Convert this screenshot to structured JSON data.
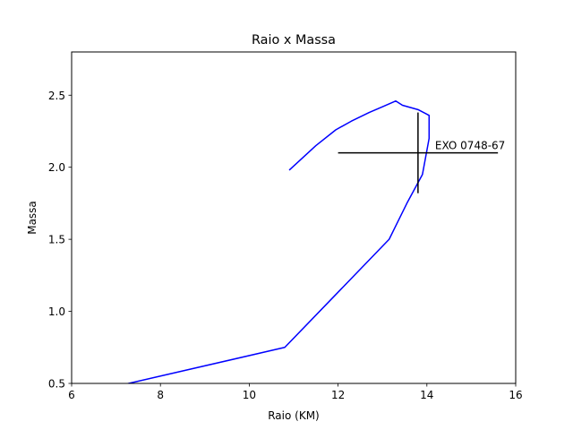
{
  "chart_data": {
    "type": "line",
    "title": "Raio x Massa",
    "xlabel": "Raio (KM)",
    "ylabel": "Massa",
    "xlim": [
      6,
      16
    ],
    "ylim": [
      0.5,
      2.8
    ],
    "xticks": [
      6,
      8,
      10,
      12,
      14,
      16
    ],
    "xtick_labels": [
      "6",
      "8",
      "10",
      "12",
      "14",
      "16"
    ],
    "yticks": [
      0.5,
      1.0,
      1.5,
      2.0,
      2.5
    ],
    "ytick_labels": [
      "0.5",
      "1.0",
      "1.5",
      "2.0",
      "2.5"
    ],
    "grid": false,
    "series": [
      {
        "color": "#0000ff",
        "x": [
          7.0,
          10.8,
          13.15,
          13.55,
          13.9,
          14.05,
          14.05,
          13.8,
          13.45,
          13.3,
          13.0,
          12.7,
          12.3,
          11.95,
          11.5,
          10.9
        ],
        "y": [
          0.48,
          0.75,
          1.5,
          1.75,
          1.95,
          2.2,
          2.36,
          2.4,
          2.43,
          2.46,
          2.42,
          2.38,
          2.32,
          2.26,
          2.15,
          1.98
        ]
      }
    ],
    "annotation": {
      "label": "EXO 0748-67",
      "x": 13.8,
      "y": 2.1,
      "xerr": [
        12.0,
        15.6
      ],
      "yerr": [
        1.82,
        2.38
      ],
      "color": "#000000"
    }
  }
}
